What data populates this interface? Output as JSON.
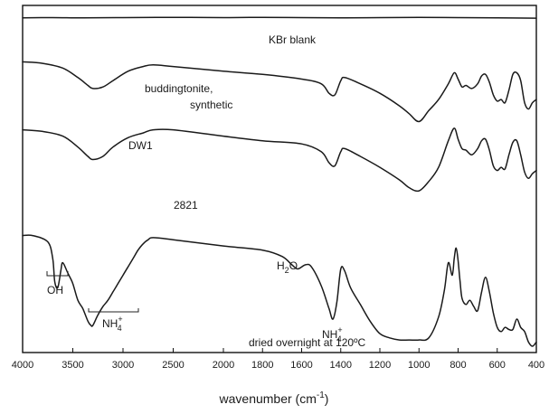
{
  "chart_data": {
    "type": "line",
    "title": "",
    "xlabel": "wavenumber (cm-1)",
    "xlabel_parts": {
      "base": "wavenumber (cm",
      "sup": "-1",
      "close": ")"
    },
    "ylabel": "",
    "x_axis": "reversed, piecewise: 4000–2000 then 2000–400 expanded",
    "xlim": [
      4000,
      400
    ],
    "x_ticks": [
      4000,
      3500,
      3000,
      2500,
      2000,
      1800,
      1600,
      1400,
      1200,
      1000,
      800,
      600,
      400
    ],
    "x_tick_labels": [
      "4000",
      "3500",
      "3000",
      "2500",
      "2000",
      "1800",
      "1600",
      "1400",
      "1200",
      "1000",
      "800",
      "600",
      "400"
    ],
    "grid": false,
    "series": [
      {
        "name": "KBr blank",
        "x": [
          4000,
          3700,
          3400,
          3000,
          2500,
          2000,
          1800,
          1600,
          1400,
          1200,
          1000,
          800,
          600,
          400
        ],
        "y": [
          0.97,
          0.975,
          0.97,
          0.975,
          0.98,
          0.975,
          0.98,
          0.975,
          0.97,
          0.975,
          0.98,
          0.975,
          0.97,
          0.965
        ]
      },
      {
        "name": "buddingtonite, synthetic",
        "x": [
          4000,
          3800,
          3600,
          3450,
          3350,
          3300,
          3200,
          3100,
          2950,
          2800,
          2700,
          2500,
          2000,
          1800,
          1600,
          1500,
          1460,
          1430,
          1400,
          1380,
          1300,
          1200,
          1100,
          1050,
          1000,
          950,
          900,
          850,
          820,
          800,
          780,
          760,
          730,
          700,
          680,
          660,
          640,
          620,
          600,
          580,
          560,
          540,
          520,
          500,
          480,
          460,
          440,
          420,
          400
        ],
        "y": [
          0.86,
          0.85,
          0.82,
          0.76,
          0.71,
          0.69,
          0.7,
          0.74,
          0.8,
          0.83,
          0.84,
          0.83,
          0.8,
          0.78,
          0.75,
          0.72,
          0.66,
          0.65,
          0.74,
          0.76,
          0.72,
          0.66,
          0.58,
          0.53,
          0.48,
          0.55,
          0.62,
          0.72,
          0.79,
          0.75,
          0.7,
          0.71,
          0.69,
          0.72,
          0.77,
          0.78,
          0.73,
          0.65,
          0.61,
          0.62,
          0.6,
          0.68,
          0.78,
          0.79,
          0.74,
          0.6,
          0.56,
          0.6,
          0.62
        ]
      },
      {
        "name": "DW1",
        "x": [
          4000,
          3800,
          3600,
          3450,
          3350,
          3300,
          3200,
          3100,
          2950,
          2800,
          2700,
          2500,
          2000,
          1800,
          1600,
          1500,
          1460,
          1430,
          1400,
          1380,
          1300,
          1200,
          1100,
          1050,
          1000,
          950,
          900,
          850,
          820,
          800,
          780,
          760,
          730,
          700,
          680,
          660,
          640,
          620,
          600,
          580,
          560,
          540,
          520,
          500,
          480,
          460,
          440,
          420,
          400
        ],
        "y": [
          0.69,
          0.68,
          0.65,
          0.58,
          0.52,
          0.5,
          0.52,
          0.58,
          0.64,
          0.67,
          0.69,
          0.69,
          0.65,
          0.62,
          0.6,
          0.55,
          0.48,
          0.46,
          0.55,
          0.57,
          0.52,
          0.45,
          0.37,
          0.32,
          0.3,
          0.36,
          0.45,
          0.62,
          0.7,
          0.63,
          0.57,
          0.56,
          0.53,
          0.57,
          0.62,
          0.63,
          0.56,
          0.46,
          0.43,
          0.45,
          0.44,
          0.53,
          0.61,
          0.62,
          0.53,
          0.42,
          0.38,
          0.41,
          0.43
        ]
      },
      {
        "name": "2821",
        "x": [
          4000,
          3900,
          3750,
          3700,
          3680,
          3650,
          3620,
          3600,
          3550,
          3500,
          3450,
          3400,
          3350,
          3320,
          3300,
          3250,
          3200,
          3150,
          3100,
          3050,
          3000,
          2950,
          2900,
          2850,
          2800,
          2750,
          2700,
          2500,
          2000,
          1800,
          1700,
          1650,
          1620,
          1580,
          1550,
          1500,
          1460,
          1440,
          1420,
          1400,
          1380,
          1350,
          1300,
          1250,
          1200,
          1150,
          1100,
          1050,
          1000,
          950,
          900,
          870,
          850,
          830,
          820,
          810,
          800,
          790,
          780,
          760,
          740,
          720,
          700,
          680,
          660,
          640,
          620,
          600,
          580,
          560,
          540,
          520,
          500,
          480,
          460,
          440,
          420,
          400
        ],
        "y": [
          0.53,
          0.53,
          0.5,
          0.42,
          0.31,
          0.28,
          0.36,
          0.4,
          0.35,
          0.3,
          0.22,
          0.18,
          0.12,
          0.1,
          0.1,
          0.15,
          0.19,
          0.22,
          0.26,
          0.3,
          0.34,
          0.38,
          0.42,
          0.46,
          0.49,
          0.51,
          0.52,
          0.51,
          0.48,
          0.46,
          0.43,
          0.39,
          0.37,
          0.39,
          0.38,
          0.29,
          0.18,
          0.13,
          0.21,
          0.37,
          0.36,
          0.28,
          0.2,
          0.12,
          0.06,
          0.04,
          0.03,
          0.03,
          0.03,
          0.04,
          0.14,
          0.27,
          0.4,
          0.34,
          0.42,
          0.47,
          0.41,
          0.31,
          0.23,
          0.2,
          0.22,
          0.19,
          0.17,
          0.26,
          0.33,
          0.26,
          0.16,
          0.09,
          0.07,
          0.09,
          0.08,
          0.08,
          0.13,
          0.09,
          0.07,
          0.02,
          0.0,
          0.02
        ]
      }
    ],
    "annotations": {
      "kbr_blank": "KBr blank",
      "buddingtonite_line1": "buddingtonite,",
      "buddingtonite_line2": "synthetic",
      "dw1": "DW1",
      "s2821": "2821",
      "h2o": {
        "base": "H",
        "sub": "2",
        "rest": "O"
      },
      "oh": "OH",
      "nh4_left": {
        "base": "NH",
        "sup": "+",
        "sub": "4"
      },
      "nh4_right": {
        "base": "NH",
        "sup": "+",
        "sub": "4"
      },
      "dried": "dried overnight at 120ºC"
    }
  }
}
